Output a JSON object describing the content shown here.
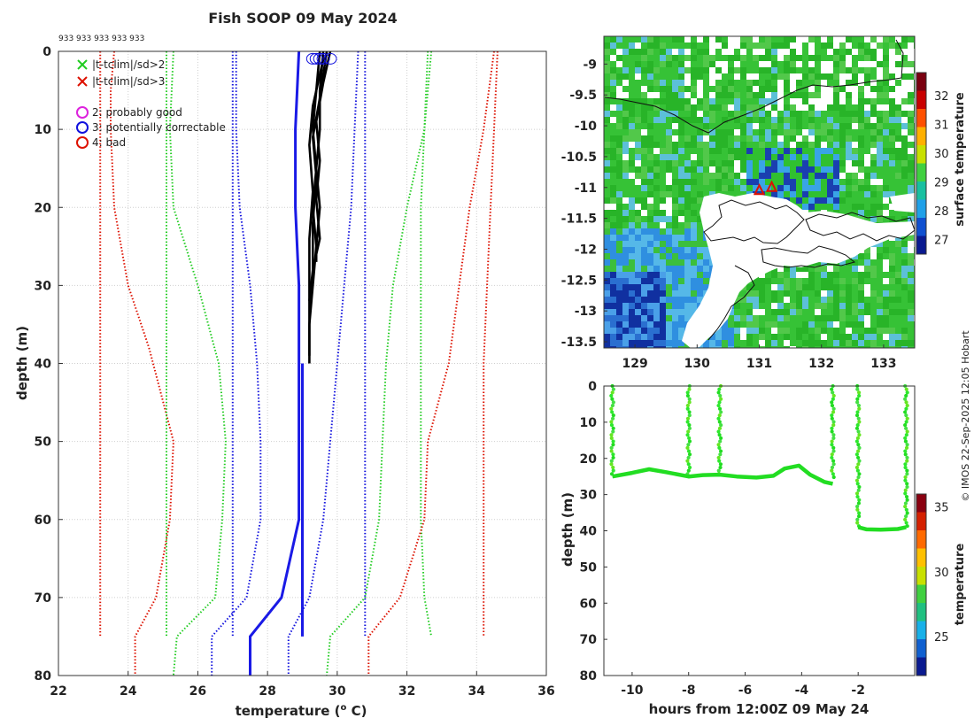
{
  "title": "Fish SOOP 09 May 2024",
  "counts_label": "933 933 933 933 933",
  "watermark": "© IMOS 22-Sep-2025 12:05 Hobart",
  "colors": {
    "green_stat": "#22cc22",
    "blue_stat": "#1010dd",
    "red_stat": "#dd1100",
    "profile_mean": "#1a1ae6",
    "profiles": "#000000",
    "magenta": "#dd22dd"
  },
  "chart_data": [
    {
      "id": "profile",
      "type": "line",
      "title": "Fish SOOP 09 May 2024",
      "xlabel": "temperature (° C)",
      "xlabel_main": "temperature (",
      "xlabel_sup": "o",
      "xlabel_tail": " C)",
      "ylabel": "depth (m)",
      "xlim": [
        22,
        36
      ],
      "ylim": [
        80,
        0
      ],
      "xticks": [
        22,
        24,
        26,
        28,
        30,
        32,
        34,
        36
      ],
      "yticks": [
        0,
        10,
        20,
        30,
        40,
        50,
        60,
        70,
        80
      ],
      "grid": true,
      "legend": {
        "position": "top-left",
        "entries": [
          {
            "symbol": "x",
            "color": "#22cc22",
            "label": "|t-tclim|/sd>2"
          },
          {
            "symbol": "x",
            "color": "#dd1100",
            "label": "|t-tclim|/sd>3"
          },
          {
            "symbol": "o",
            "color": "#dd22dd",
            "label": "2: probably good"
          },
          {
            "symbol": "o",
            "color": "#1010dd",
            "label": "3: potentially correctable"
          },
          {
            "symbol": "o",
            "color": "#dd1100",
            "label": "4: bad"
          }
        ]
      },
      "series": [
        {
          "name": "clim-3sd-a",
          "color": "#dd1100",
          "style": "dotted",
          "points": [
            [
              23.2,
              0
            ],
            [
              23.2,
              5
            ],
            [
              23.2,
              10
            ],
            [
              23.2,
              20
            ],
            [
              23.2,
              30
            ],
            [
              23.2,
              40
            ],
            [
              23.2,
              50
            ],
            [
              23.2,
              60
            ],
            [
              23.2,
              70
            ],
            [
              23.2,
              75
            ]
          ]
        },
        {
          "name": "clim-3sd-b",
          "color": "#dd1100",
          "style": "dotted",
          "points": [
            [
              23.6,
              0
            ],
            [
              23.5,
              5
            ],
            [
              23.5,
              10
            ],
            [
              23.6,
              20
            ],
            [
              24.0,
              30
            ],
            [
              24.6,
              38
            ],
            [
              25.3,
              50
            ],
            [
              25.2,
              60
            ],
            [
              24.8,
              70
            ],
            [
              24.2,
              75
            ],
            [
              24.2,
              80
            ]
          ]
        },
        {
          "name": "clim-2sd-a",
          "color": "#22cc22",
          "style": "dotted",
          "points": [
            [
              25.1,
              0
            ],
            [
              25.1,
              10
            ],
            [
              25.1,
              20
            ],
            [
              25.1,
              30
            ],
            [
              25.1,
              40
            ],
            [
              25.1,
              50
            ],
            [
              25.1,
              60
            ],
            [
              25.1,
              70
            ],
            [
              25.1,
              75
            ]
          ]
        },
        {
          "name": "clim-2sd-b",
          "color": "#22cc22",
          "style": "dotted",
          "points": [
            [
              25.3,
              0
            ],
            [
              25.2,
              10
            ],
            [
              25.3,
              20
            ],
            [
              26.0,
              30
            ],
            [
              26.6,
              40
            ],
            [
              26.8,
              50
            ],
            [
              26.7,
              60
            ],
            [
              26.5,
              70
            ],
            [
              25.4,
              75
            ],
            [
              25.3,
              80
            ]
          ]
        },
        {
          "name": "clim-sd-a",
          "color": "#1010dd",
          "style": "dotted",
          "points": [
            [
              27.0,
              0
            ],
            [
              27.0,
              10
            ],
            [
              27.0,
              20
            ],
            [
              27.0,
              30
            ],
            [
              27.0,
              40
            ],
            [
              27.0,
              50
            ],
            [
              27.0,
              60
            ],
            [
              27.0,
              70
            ],
            [
              27.0,
              75
            ]
          ]
        },
        {
          "name": "clim-sd-b",
          "color": "#1010dd",
          "style": "dotted",
          "points": [
            [
              27.1,
              0
            ],
            [
              27.1,
              10
            ],
            [
              27.2,
              20
            ],
            [
              27.5,
              30
            ],
            [
              27.7,
              40
            ],
            [
              27.8,
              50
            ],
            [
              27.8,
              60
            ],
            [
              27.4,
              70
            ],
            [
              26.4,
              75
            ],
            [
              26.4,
              80
            ]
          ]
        },
        {
          "name": "clim-mean",
          "color": "#1a1ae6",
          "style": "solid",
          "points": [
            [
              28.9,
              0
            ],
            [
              28.8,
              10
            ],
            [
              28.8,
              20
            ],
            [
              28.9,
              30
            ],
            [
              28.9,
              40
            ],
            [
              28.9,
              50
            ],
            [
              28.9,
              60
            ],
            [
              28.4,
              70
            ],
            [
              27.5,
              75
            ],
            [
              27.5,
              80
            ]
          ]
        },
        {
          "name": "clim-mean-b",
          "color": "#1a1ae6",
          "style": "solid",
          "points": [
            [
              29.0,
              40
            ],
            [
              29.0,
              60
            ],
            [
              29.0,
              75
            ]
          ]
        },
        {
          "name": "clim+sd-a",
          "color": "#1010dd",
          "style": "dotted",
          "points": [
            [
              30.8,
              0
            ],
            [
              30.8,
              10
            ],
            [
              30.8,
              20
            ],
            [
              30.8,
              30
            ],
            [
              30.8,
              40
            ],
            [
              30.8,
              50
            ],
            [
              30.8,
              60
            ],
            [
              30.8,
              70
            ],
            [
              30.8,
              75
            ]
          ]
        },
        {
          "name": "clim+sd-b",
          "color": "#1010dd",
          "style": "dotted",
          "points": [
            [
              30.6,
              0
            ],
            [
              30.5,
              10
            ],
            [
              30.4,
              20
            ],
            [
              30.2,
              30
            ],
            [
              30.0,
              40
            ],
            [
              29.8,
              50
            ],
            [
              29.6,
              60
            ],
            [
              29.2,
              70
            ],
            [
              28.6,
              75
            ],
            [
              28.6,
              80
            ]
          ]
        },
        {
          "name": "clim+2sd-a",
          "color": "#22cc22",
          "style": "dotted",
          "points": [
            [
              32.6,
              0
            ],
            [
              32.5,
              10
            ],
            [
              32.4,
              20
            ],
            [
              32.4,
              30
            ],
            [
              32.4,
              40
            ],
            [
              32.4,
              50
            ],
            [
              32.4,
              60
            ],
            [
              32.5,
              70
            ],
            [
              32.7,
              75
            ]
          ]
        },
        {
          "name": "clim+2sd-b",
          "color": "#22cc22",
          "style": "dotted",
          "points": [
            [
              32.7,
              0
            ],
            [
              32.5,
              10
            ],
            [
              32.0,
              20
            ],
            [
              31.6,
              30
            ],
            [
              31.4,
              40
            ],
            [
              31.3,
              50
            ],
            [
              31.2,
              60
            ],
            [
              30.8,
              70
            ],
            [
              29.8,
              75
            ],
            [
              29.7,
              80
            ]
          ]
        },
        {
          "name": "clim+3sd-a",
          "color": "#dd1100",
          "style": "dotted",
          "points": [
            [
              34.6,
              0
            ],
            [
              34.5,
              10
            ],
            [
              34.4,
              20
            ],
            [
              34.3,
              30
            ],
            [
              34.2,
              40
            ],
            [
              34.2,
              50
            ],
            [
              34.2,
              60
            ],
            [
              34.2,
              70
            ],
            [
              34.2,
              75
            ]
          ]
        },
        {
          "name": "clim+3sd-b",
          "color": "#dd1100",
          "style": "dotted",
          "points": [
            [
              34.5,
              0
            ],
            [
              34.2,
              10
            ],
            [
              33.8,
              20
            ],
            [
              33.5,
              30
            ],
            [
              33.2,
              40
            ],
            [
              32.6,
              50
            ],
            [
              32.5,
              60
            ],
            [
              31.8,
              70
            ],
            [
              30.9,
              75
            ],
            [
              30.9,
              80
            ]
          ]
        },
        {
          "name": "profile-1",
          "color": "#000000",
          "style": "solid",
          "points": [
            [
              29.5,
              0
            ],
            [
              29.4,
              5
            ],
            [
              29.3,
              10
            ],
            [
              29.4,
              15
            ],
            [
              29.3,
              20
            ],
            [
              29.4,
              25
            ],
            [
              29.3,
              30
            ],
            [
              29.2,
              35
            ],
            [
              29.2,
              40
            ]
          ]
        },
        {
          "name": "profile-2",
          "color": "#000000",
          "style": "solid",
          "points": [
            [
              29.6,
              0
            ],
            [
              29.5,
              5
            ],
            [
              29.5,
              10
            ],
            [
              29.4,
              15
            ],
            [
              29.5,
              20
            ],
            [
              29.4,
              25
            ],
            [
              29.4,
              27
            ]
          ]
        },
        {
          "name": "profile-3",
          "color": "#000000",
          "style": "solid",
          "points": [
            [
              29.7,
              0
            ],
            [
              29.5,
              6
            ],
            [
              29.3,
              11
            ],
            [
              29.4,
              16
            ],
            [
              29.3,
              22
            ],
            [
              29.3,
              28
            ],
            [
              29.2,
              32
            ]
          ]
        },
        {
          "name": "profile-4",
          "color": "#000000",
          "style": "solid",
          "points": [
            [
              29.8,
              0
            ],
            [
              29.6,
              4
            ],
            [
              29.4,
              9
            ],
            [
              29.5,
              14
            ],
            [
              29.4,
              19
            ],
            [
              29.5,
              24
            ],
            [
              29.4,
              26
            ]
          ]
        },
        {
          "name": "profile-5",
          "color": "#000000",
          "style": "solid",
          "points": [
            [
              29.6,
              1
            ],
            [
              29.3,
              7
            ],
            [
              29.2,
              12
            ],
            [
              29.3,
              18
            ],
            [
              29.2,
              24
            ],
            [
              29.2,
              30
            ],
            [
              29.2,
              39
            ]
          ]
        }
      ],
      "flag_circles": [
        [
          29.3,
          0.5
        ],
        [
          29.4,
          0.5
        ],
        [
          29.5,
          0.5
        ],
        [
          29.6,
          0.5
        ],
        [
          29.8,
          0.5
        ]
      ]
    },
    {
      "id": "map",
      "type": "heatmap",
      "xlim": [
        128.5,
        133.5
      ],
      "ylim": [
        -13.6,
        -8.55
      ],
      "xticks": [
        129,
        130,
        131,
        132,
        133
      ],
      "yticks": [
        -9,
        -9.5,
        -10,
        -10.5,
        -11,
        -11.5,
        -12,
        -12.5,
        -13,
        -13.5
      ],
      "colorbar": {
        "label": "surface temperature",
        "ticks": [
          27,
          28,
          29,
          30,
          31,
          32
        ],
        "range": [
          26.5,
          32.8
        ]
      },
      "markers": [
        [
          131.0,
          -11.05
        ],
        [
          131.2,
          -11.0
        ]
      ]
    },
    {
      "id": "section",
      "type": "scatter",
      "xlabel": "hours from 12:00Z 09 May 24",
      "ylabel": "depth (m)",
      "xlim": [
        -11,
        0
      ],
      "ylim": [
        80,
        0
      ],
      "xticks": [
        -10,
        -8,
        -6,
        -4,
        -2
      ],
      "yticks": [
        0,
        10,
        20,
        30,
        40,
        50,
        60,
        70,
        80
      ],
      "colorbar": {
        "label": "temperature",
        "ticks": [
          25,
          30,
          35
        ],
        "range": [
          22,
          36
        ]
      },
      "casts": [
        {
          "x": -10.7,
          "top": 0,
          "bottom": 25
        },
        {
          "x": -8.0,
          "top": 0,
          "bottom": 25
        },
        {
          "x": -6.9,
          "top": 0,
          "bottom": 24.5
        },
        {
          "x": -2.9,
          "top": 0,
          "bottom": 25.5
        },
        {
          "x": -2.0,
          "top": 0,
          "bottom": 39
        },
        {
          "x": -0.3,
          "top": 0,
          "bottom": 39
        }
      ],
      "tow_track": [
        [
          -10.7,
          25
        ],
        [
          -10.0,
          24
        ],
        [
          -9.4,
          23
        ],
        [
          -8.8,
          23.8
        ],
        [
          -8.0,
          25
        ],
        [
          -7.5,
          24.6
        ],
        [
          -6.9,
          24.5
        ],
        [
          -6.3,
          25
        ],
        [
          -5.6,
          25.3
        ],
        [
          -5.0,
          24.8
        ],
        [
          -4.6,
          22.8
        ],
        [
          -4.1,
          22
        ],
        [
          -3.7,
          24.5
        ],
        [
          -3.2,
          26.5
        ],
        [
          -2.9,
          27
        ]
      ],
      "tow_track_2": [
        [
          -2.0,
          39
        ],
        [
          -1.7,
          39.6
        ],
        [
          -1.2,
          39.7
        ],
        [
          -0.6,
          39.5
        ],
        [
          -0.3,
          39
        ]
      ]
    }
  ]
}
